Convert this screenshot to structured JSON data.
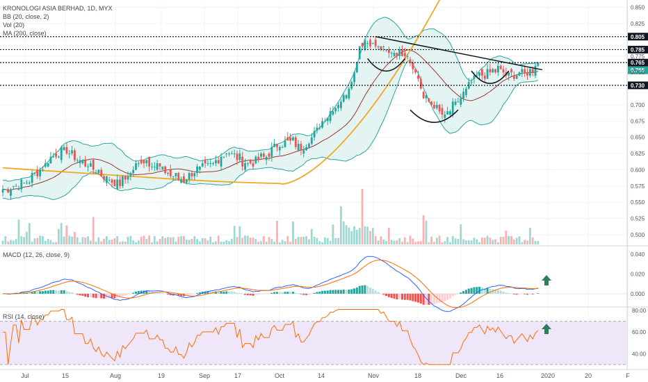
{
  "header": {
    "symbol_line": "KRONOLOGI ASIA BERHAD, 1D, MYX",
    "indicators": [
      "BB (20, close, 2)",
      "Vol (20)",
      "MA (200, close)"
    ]
  },
  "panes": {
    "macd_label": "MACD (12, 26, close, 9)",
    "rsi_label": "RSI (14, close)"
  },
  "colors": {
    "up": "#26a69a",
    "down": "#ef5350",
    "bb_fill": "#e4f4f3",
    "bb_line": "#26a69a",
    "basis": "#a0332d",
    "ma200": "#f5a623",
    "macd_line": "#2962ff",
    "signal_line": "#ff6d00",
    "rsi_line": "#ff6d00",
    "rsi_band": "#f0e6fa",
    "arrow": "#2e7d5b"
  },
  "chart_data": [
    {
      "type": "candlestick",
      "title": "KRONOLOGI ASIA BERHAD, 1D, MYX",
      "x_ticks": [
        "Jul",
        "15",
        "Aug",
        "19",
        "Sep",
        "17",
        "Oct",
        "14",
        "Nov",
        "18",
        "Dec",
        "16",
        "2020",
        "20",
        "F"
      ],
      "y_ticks": [
        0.5,
        0.525,
        0.55,
        0.575,
        0.6,
        0.625,
        0.65,
        0.675,
        0.7,
        0.725,
        0.75,
        0.775,
        0.8,
        0.825,
        0.85
      ],
      "y_range": [
        0.485,
        0.855
      ],
      "last_price": 0.765,
      "horizontal_levels": [
        0.805,
        0.785,
        0.765,
        0.73
      ],
      "price_anchors": [
        [
          0,
          0.57
        ],
        [
          5,
          0.575
        ],
        [
          10,
          0.585
        ],
        [
          15,
          0.605
        ],
        [
          20,
          0.625
        ],
        [
          24,
          0.63
        ],
        [
          28,
          0.615
        ],
        [
          32,
          0.608
        ],
        [
          36,
          0.598
        ],
        [
          40,
          0.585
        ],
        [
          44,
          0.58
        ],
        [
          48,
          0.595
        ],
        [
          52,
          0.615
        ],
        [
          56,
          0.612
        ],
        [
          60,
          0.598
        ],
        [
          64,
          0.59
        ],
        [
          68,
          0.585
        ],
        [
          72,
          0.6
        ],
        [
          76,
          0.603
        ],
        [
          80,
          0.612
        ],
        [
          84,
          0.628
        ],
        [
          88,
          0.62
        ],
        [
          92,
          0.608
        ],
        [
          96,
          0.615
        ],
        [
          100,
          0.625
        ],
        [
          104,
          0.64
        ],
        [
          108,
          0.645
        ],
        [
          112,
          0.635
        ],
        [
          116,
          0.65
        ],
        [
          120,
          0.675
        ],
        [
          124,
          0.695
        ],
        [
          128,
          0.71
        ],
        [
          132,
          0.75
        ],
        [
          134,
          0.79
        ],
        [
          136,
          0.8
        ],
        [
          140,
          0.79
        ],
        [
          144,
          0.78
        ],
        [
          148,
          0.782
        ],
        [
          152,
          0.78
        ],
        [
          156,
          0.74
        ],
        [
          158,
          0.71
        ],
        [
          162,
          0.7
        ],
        [
          166,
          0.68
        ],
        [
          170,
          0.702
        ],
        [
          174,
          0.722
        ],
        [
          178,
          0.745
        ],
        [
          182,
          0.748
        ],
        [
          186,
          0.755
        ],
        [
          190,
          0.745
        ],
        [
          194,
          0.748
        ],
        [
          198,
          0.752
        ],
        [
          200,
          0.762
        ],
        [
          201,
          0.765
        ]
      ],
      "trendline": [
        [
          140,
          0.805
        ],
        [
          201,
          0.754
        ]
      ],
      "pattern_arcs": [
        {
          "from": 137,
          "to": 151,
          "min": 0.752
        },
        {
          "from": 153,
          "to": 171,
          "min": 0.673
        },
        {
          "from": 176,
          "to": 190,
          "min": 0.733
        }
      ]
    },
    {
      "type": "bar",
      "name": "Vol (20)",
      "note": "volume histogram at bottom of price pane"
    },
    {
      "type": "line",
      "name": "MACD (12, 26, close, 9)",
      "y_ticks": [
        0.04,
        0.02,
        0.0
      ],
      "y_range": [
        -0.012,
        0.047
      ]
    },
    {
      "type": "line",
      "name": "RSI (14, close)",
      "y_ticks": [
        80.0,
        60.0,
        40.0
      ],
      "y_range": [
        28,
        82
      ],
      "band": [
        30,
        70
      ]
    }
  ]
}
